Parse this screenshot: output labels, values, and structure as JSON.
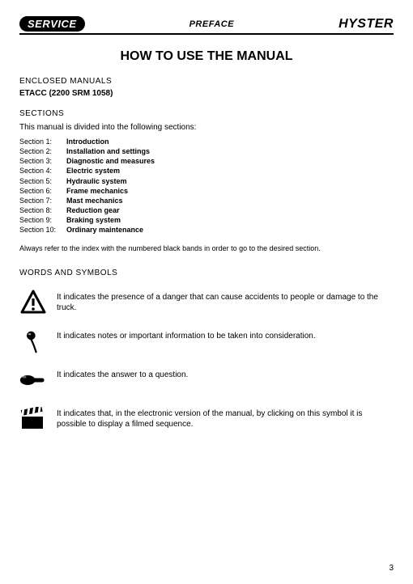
{
  "header": {
    "service_badge": "SERVICE",
    "center": "PREFACE",
    "brand": "HYSTER"
  },
  "title": "HOW TO USE THE MANUAL",
  "enclosed": {
    "heading": "ENCLOSED MANUALS",
    "code": "ETACC (2200 SRM 1058)"
  },
  "sections": {
    "heading": "SECTIONS",
    "intro": "This manual is divided into the following sections:",
    "items": [
      {
        "label": "Section 1:",
        "title": "Introduction"
      },
      {
        "label": "Section 2:",
        "title": "Installation and settings"
      },
      {
        "label": "Section 3:",
        "title": "Diagnostic and measures"
      },
      {
        "label": "Section 4:",
        "title": "Electric system"
      },
      {
        "label": "Section 5:",
        "title": "Hydraulic system"
      },
      {
        "label": "Section 6:",
        "title": "Frame mechanics"
      },
      {
        "label": "Section 7:",
        "title": "Mast mechanics"
      },
      {
        "label": "Section 8:",
        "title": "Reduction gear"
      },
      {
        "label": "Section 9:",
        "title": "Braking system"
      },
      {
        "label": "Section 10:",
        "title": "Ordinary maintenance"
      }
    ],
    "note": "Always refer to the index with the numbered black bands in order to go to the desired section."
  },
  "symbols": {
    "heading": "WORDS AND SYMBOLS",
    "items": [
      {
        "icon": "warning-icon",
        "text": "It indicates the presence of a danger that can cause accidents to people or damage to the truck."
      },
      {
        "icon": "pushpin-icon",
        "text": "It indicates notes or important information to be taken into consideration."
      },
      {
        "icon": "pointing-hand-icon",
        "text": "It indicates the answer to a question."
      },
      {
        "icon": "clapperboard-icon",
        "text": "It indicates that, in the electronic version of the manual, by clicking on this symbol it is possible to display a filmed sequence."
      }
    ]
  },
  "page_number": "3",
  "colors": {
    "text": "#000000",
    "background": "#ffffff"
  },
  "typography": {
    "body_fontsize_pt": 10,
    "small_fontsize_pt": 9,
    "title_fontsize_pt": 16,
    "brand_fontsize_pt": 16,
    "font_family": "Arial"
  }
}
